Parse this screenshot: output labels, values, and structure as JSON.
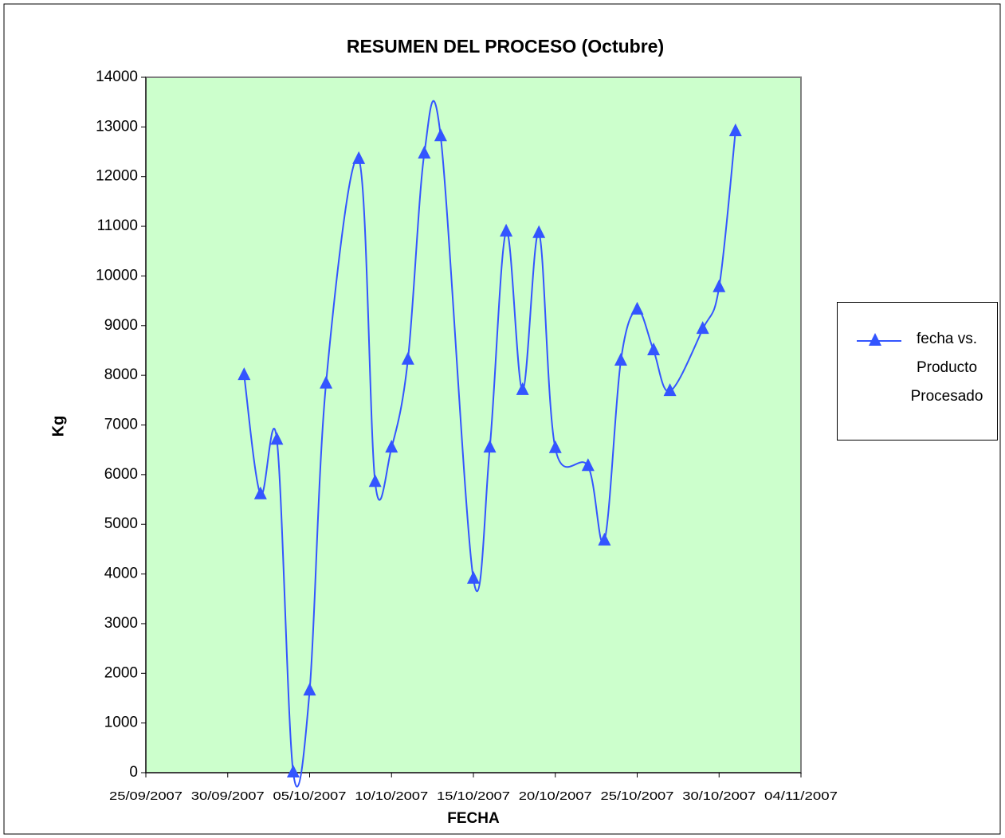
{
  "chart_data": {
    "type": "line",
    "title": "RESUMEN DEL PROCESO (Octubre)",
    "x_label": "FECHA",
    "y_label": "Kg",
    "x": [
      "01/10/2007",
      "02/10/2007",
      "03/10/2007",
      "04/10/2007",
      "05/10/2007",
      "06/10/2007",
      "08/10/2007",
      "09/10/2007",
      "10/10/2007",
      "11/10/2007",
      "12/10/2007",
      "13/10/2007",
      "15/10/2007",
      "16/10/2007",
      "17/10/2007",
      "18/10/2007",
      "19/10/2007",
      "20/10/2007",
      "22/10/2007",
      "23/10/2007",
      "24/10/2007",
      "25/10/2007",
      "26/10/2007",
      "27/10/2007",
      "29/10/2007",
      "30/10/2007",
      "31/10/2007"
    ],
    "series": [
      {
        "name": "fecha vs. Producto Procesado",
        "color": "#3355ff",
        "values": [
          8000,
          5600,
          6700,
          0,
          1650,
          7830,
          12350,
          5850,
          6540,
          8310,
          12460,
          12810,
          3900,
          6540,
          10890,
          7700,
          10860,
          6530,
          6170,
          4670,
          8290,
          9320,
          8500,
          7680,
          8930,
          9770,
          12910
        ]
      }
    ],
    "xlim": [
      "25/09/2007",
      "04/11/2007"
    ],
    "xticks": [
      "25/09/2007",
      "30/09/2007",
      "05/10/2007",
      "10/10/2007",
      "15/10/2007",
      "20/10/2007",
      "25/10/2007",
      "30/10/2007",
      "04/11/2007"
    ],
    "ylim": [
      0,
      14000
    ],
    "yticks": [
      0,
      1000,
      2000,
      3000,
      4000,
      5000,
      6000,
      7000,
      8000,
      9000,
      10000,
      11000,
      12000,
      13000,
      14000
    ],
    "plot_background": "#ccffcc",
    "grid": false,
    "smooth": true,
    "marker": "triangle",
    "legend": "right"
  }
}
